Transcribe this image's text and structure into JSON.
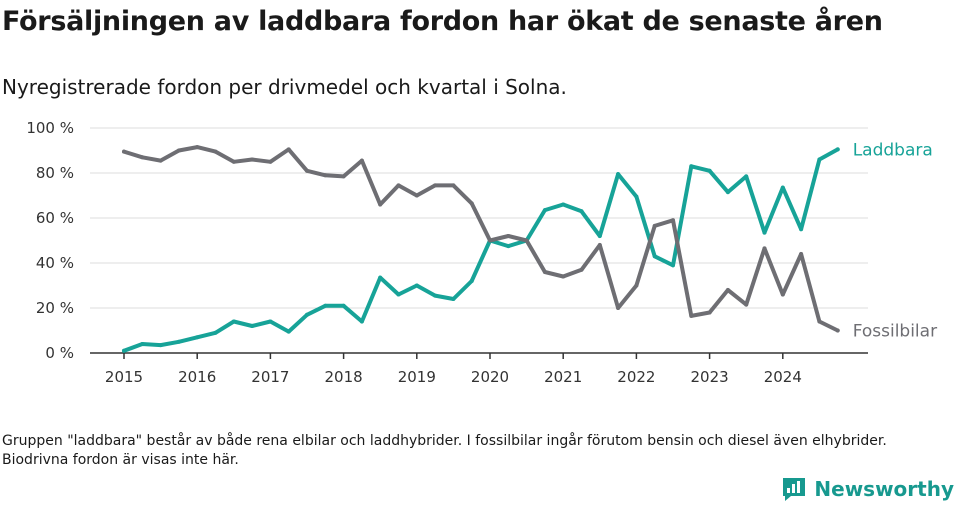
{
  "title": "Försäljningen av laddbara fordon har ökat de senaste åren",
  "subtitle": "Nyregistrerade fordon per drivmedel och kvartal i Solna.",
  "footnote": "Gruppen \"laddbara\" består av både rena elbilar och laddhybrider. I fossilbilar ingår förutom bensin och diesel även elhybrider. Biodrivna fordon är visas inte här.",
  "brand": {
    "name": "Newsworthy",
    "logo_icon": "newsworthy-logo-icon",
    "color": "#17998f"
  },
  "chart_data": {
    "type": "line",
    "title": "Försäljningen av laddbara fordon har ökat de senaste åren",
    "xlabel": "",
    "ylabel": "",
    "ylim": [
      0,
      100
    ],
    "yticks": [
      0,
      20,
      40,
      60,
      80,
      100
    ],
    "ytick_labels": [
      "0 %",
      "20 %",
      "40 %",
      "60 %",
      "80 %",
      "100 %"
    ],
    "xticks": [
      2015,
      2016,
      2017,
      2018,
      2019,
      2020,
      2021,
      2022,
      2023,
      2024
    ],
    "xtick_labels": [
      "2015",
      "2016",
      "2017",
      "2018",
      "2019",
      "2020",
      "2021",
      "2022",
      "2023",
      "2024"
    ],
    "x": [
      2015.0,
      2015.25,
      2015.5,
      2015.75,
      2016.0,
      2016.25,
      2016.5,
      2016.75,
      2017.0,
      2017.25,
      2017.5,
      2017.75,
      2018.0,
      2018.25,
      2018.5,
      2018.75,
      2019.0,
      2019.25,
      2019.5,
      2019.75,
      2020.0,
      2020.25,
      2020.5,
      2020.75,
      2021.0,
      2021.25,
      2021.5,
      2021.75,
      2022.0,
      2022.25,
      2022.5,
      2022.75,
      2023.0,
      2023.25,
      2023.5,
      2023.75,
      2024.0,
      2024.25,
      2024.5,
      2024.75
    ],
    "grid": true,
    "legend": "direct labels at line ends",
    "series": [
      {
        "name": "Laddbara",
        "color": "#17a398",
        "values": [
          1,
          4,
          3.5,
          5,
          7,
          9,
          14,
          12,
          14,
          9.5,
          17,
          21,
          21,
          14,
          33.5,
          26,
          30,
          25.5,
          24,
          32,
          50,
          47.5,
          50,
          63.5,
          66,
          63,
          52,
          79.5,
          69.5,
          43,
          39,
          83,
          81,
          71.5,
          78.5,
          53.5,
          73.5,
          55,
          86,
          90.5
        ]
      },
      {
        "name": "Fossilbilar",
        "color": "#6e6e73",
        "values": [
          89.5,
          87,
          85.5,
          90,
          91.5,
          89.5,
          85,
          86,
          85,
          90.5,
          81,
          79,
          78.5,
          85.5,
          66,
          74.5,
          70,
          74.5,
          74.5,
          66.5,
          50,
          52,
          50,
          36,
          34,
          37,
          48,
          20,
          30,
          56.5,
          59,
          16.5,
          18,
          28,
          21.5,
          46.5,
          26,
          44,
          14,
          10
        ]
      }
    ]
  }
}
